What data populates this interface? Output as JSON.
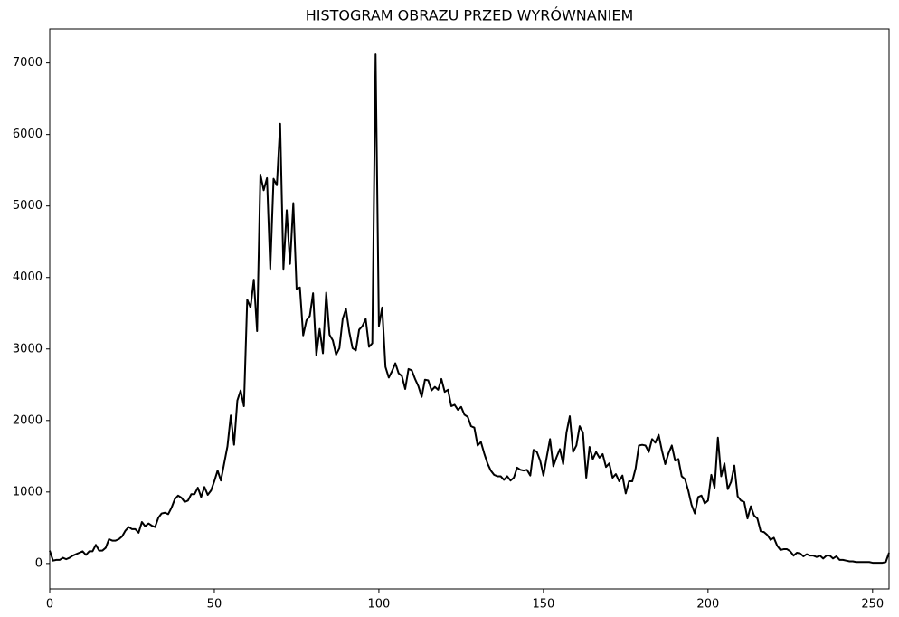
{
  "chart_data": {
    "type": "line",
    "title": "HISTOGRAM OBRAZU PRZED WYRÓWNANIEM",
    "x": [
      0,
      1,
      2,
      3,
      4,
      5,
      6,
      7,
      8,
      9,
      10,
      11,
      12,
      13,
      14,
      15,
      16,
      17,
      18,
      19,
      20,
      21,
      22,
      23,
      24,
      25,
      26,
      27,
      28,
      29,
      30,
      31,
      32,
      33,
      34,
      35,
      36,
      37,
      38,
      39,
      40,
      41,
      42,
      43,
      44,
      45,
      46,
      47,
      48,
      49,
      50,
      51,
      52,
      53,
      54,
      55,
      56,
      57,
      58,
      59,
      60,
      61,
      62,
      63,
      64,
      65,
      66,
      67,
      68,
      69,
      70,
      71,
      72,
      73,
      74,
      75,
      76,
      77,
      78,
      79,
      80,
      81,
      82,
      83,
      84,
      85,
      86,
      87,
      88,
      89,
      90,
      91,
      92,
      93,
      94,
      95,
      96,
      97,
      98,
      99,
      100,
      101,
      102,
      103,
      104,
      105,
      106,
      107,
      108,
      109,
      110,
      111,
      112,
      113,
      114,
      115,
      116,
      117,
      118,
      119,
      120,
      121,
      122,
      123,
      124,
      125,
      126,
      127,
      128,
      129,
      130,
      131,
      132,
      133,
      134,
      135,
      136,
      137,
      138,
      139,
      140,
      141,
      142,
      143,
      144,
      145,
      146,
      147,
      148,
      149,
      150,
      151,
      152,
      153,
      154,
      155,
      156,
      157,
      158,
      159,
      160,
      161,
      162,
      163,
      164,
      165,
      166,
      167,
      168,
      169,
      170,
      171,
      172,
      173,
      174,
      175,
      176,
      177,
      178,
      179,
      180,
      181,
      182,
      183,
      184,
      185,
      186,
      187,
      188,
      189,
      190,
      191,
      192,
      193,
      194,
      195,
      196,
      197,
      198,
      199,
      200,
      201,
      202,
      203,
      204,
      205,
      206,
      207,
      208,
      209,
      210,
      211,
      212,
      213,
      214,
      215,
      216,
      217,
      218,
      219,
      220,
      221,
      222,
      223,
      224,
      225,
      226,
      227,
      228,
      229,
      230,
      231,
      232,
      233,
      234,
      235,
      236,
      237,
      238,
      239,
      240,
      241,
      242,
      243,
      244,
      245,
      246,
      247,
      248,
      249,
      250,
      251,
      252,
      253,
      254,
      255
    ],
    "values": [
      180,
      40,
      50,
      50,
      80,
      60,
      80,
      110,
      130,
      150,
      170,
      120,
      170,
      170,
      260,
      180,
      180,
      220,
      340,
      320,
      320,
      340,
      380,
      460,
      510,
      480,
      480,
      430,
      580,
      520,
      560,
      530,
      510,
      640,
      700,
      710,
      690,
      780,
      900,
      950,
      920,
      860,
      880,
      970,
      970,
      1060,
      930,
      1070,
      960,
      1020,
      1150,
      1300,
      1160,
      1400,
      1640,
      2070,
      1660,
      2280,
      2420,
      2200,
      3690,
      3580,
      3970,
      3250,
      5440,
      5220,
      5390,
      4120,
      5380,
      5290,
      6150,
      4120,
      4940,
      4190,
      5040,
      3840,
      3860,
      3190,
      3400,
      3460,
      3780,
      2910,
      3280,
      2940,
      3790,
      3200,
      3120,
      2920,
      3010,
      3420,
      3560,
      3240,
      3010,
      2980,
      3270,
      3320,
      3420,
      3030,
      3080,
      7120,
      3320,
      3580,
      2750,
      2600,
      2690,
      2800,
      2660,
      2620,
      2440,
      2720,
      2700,
      2580,
      2480,
      2330,
      2570,
      2560,
      2420,
      2470,
      2430,
      2580,
      2400,
      2430,
      2200,
      2220,
      2150,
      2190,
      2080,
      2050,
      1920,
      1900,
      1650,
      1700,
      1540,
      1400,
      1300,
      1240,
      1220,
      1220,
      1170,
      1220,
      1160,
      1200,
      1340,
      1310,
      1300,
      1310,
      1230,
      1590,
      1560,
      1440,
      1230,
      1490,
      1740,
      1360,
      1490,
      1600,
      1390,
      1830,
      2060,
      1560,
      1650,
      1920,
      1830,
      1200,
      1630,
      1460,
      1560,
      1480,
      1530,
      1350,
      1400,
      1200,
      1250,
      1150,
      1230,
      980,
      1150,
      1150,
      1330,
      1650,
      1660,
      1650,
      1560,
      1740,
      1690,
      1800,
      1580,
      1390,
      1540,
      1650,
      1440,
      1460,
      1220,
      1180,
      1020,
      820,
      700,
      930,
      950,
      840,
      880,
      1240,
      1060,
      1760,
      1220,
      1400,
      1040,
      1140,
      1370,
      940,
      880,
      860,
      630,
      800,
      670,
      630,
      450,
      440,
      400,
      330,
      360,
      250,
      190,
      200,
      200,
      170,
      110,
      150,
      140,
      100,
      130,
      110,
      110,
      90,
      110,
      70,
      110,
      110,
      70,
      100,
      50,
      50,
      40,
      30,
      30,
      20,
      20,
      20,
      20,
      20,
      10,
      10,
      10,
      10,
      20,
      150
    ],
    "color": "#000000",
    "xlim": [
      0,
      255
    ],
    "xticks": [
      0,
      50,
      100,
      150,
      200,
      250
    ],
    "ylim": [
      -356,
      7476
    ],
    "yticks": [
      0,
      1000,
      2000,
      3000,
      4000,
      5000,
      6000,
      7000
    ]
  }
}
